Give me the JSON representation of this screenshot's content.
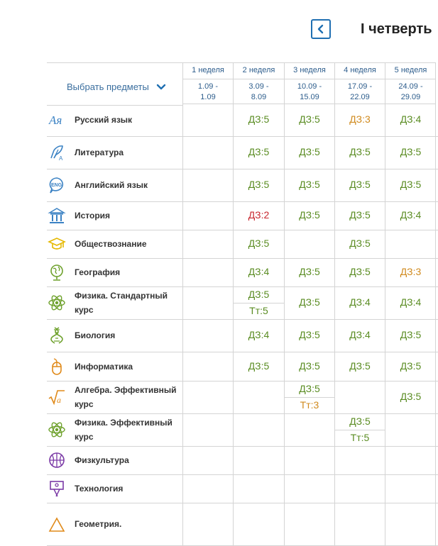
{
  "header": {
    "quarter_title": "I четверть",
    "subjects_select_label": "Выбрать предметы"
  },
  "weeks": [
    {
      "name": "1 неделя",
      "dates_start": "1.09 -",
      "dates_end": "1.09"
    },
    {
      "name": "2 неделя",
      "dates_start": "3.09 -",
      "dates_end": "8.09"
    },
    {
      "name": "3 неделя",
      "dates_start": "10.09 -",
      "dates_end": "15.09"
    },
    {
      "name": "4 неделя",
      "dates_start": "17.09 -",
      "dates_end": "22.09"
    },
    {
      "name": "5 неделя",
      "dates_start": "24.09 -",
      "dates_end": "29.09"
    }
  ],
  "subjects": [
    {
      "name_line1": "Русский язык",
      "name_line2": "",
      "icon": "russian-language-icon",
      "marks": [
        [],
        [
          {
            "text": "ДЗ:5",
            "grade": 5
          }
        ],
        [
          {
            "text": "ДЗ:5",
            "grade": 5
          }
        ],
        [
          {
            "text": "ДЗ:3",
            "grade": 3
          }
        ],
        [
          {
            "text": "ДЗ:4",
            "grade": 4
          }
        ]
      ]
    },
    {
      "name_line1": "Литература",
      "name_line2": "",
      "icon": "literature-icon",
      "marks": [
        [],
        [
          {
            "text": "ДЗ:5",
            "grade": 5
          }
        ],
        [
          {
            "text": "ДЗ:5",
            "grade": 5
          }
        ],
        [
          {
            "text": "ДЗ:5",
            "grade": 5
          }
        ],
        [
          {
            "text": "ДЗ:5",
            "grade": 5
          }
        ]
      ]
    },
    {
      "name_line1": "Английский язык",
      "name_line2": "",
      "icon": "english-language-icon",
      "marks": [
        [],
        [
          {
            "text": "ДЗ:5",
            "grade": 5
          }
        ],
        [
          {
            "text": "ДЗ:5",
            "grade": 5
          }
        ],
        [
          {
            "text": "ДЗ:5",
            "grade": 5
          }
        ],
        [
          {
            "text": "ДЗ:5",
            "grade": 5
          }
        ]
      ]
    },
    {
      "name_line1": "История",
      "name_line2": "",
      "icon": "history-icon",
      "marks": [
        [],
        [
          {
            "text": "ДЗ:2",
            "grade": 2
          }
        ],
        [
          {
            "text": "ДЗ:5",
            "grade": 5
          }
        ],
        [
          {
            "text": "ДЗ:5",
            "grade": 5
          }
        ],
        [
          {
            "text": "ДЗ:4",
            "grade": 4
          }
        ]
      ]
    },
    {
      "name_line1": "Обществознание",
      "name_line2": "",
      "icon": "social-studies-icon",
      "marks": [
        [],
        [
          {
            "text": "ДЗ:5",
            "grade": 5
          }
        ],
        [],
        [
          {
            "text": "ДЗ:5",
            "grade": 5
          }
        ],
        []
      ]
    },
    {
      "name_line1": "География",
      "name_line2": "",
      "icon": "geography-icon",
      "marks": [
        [],
        [
          {
            "text": "ДЗ:4",
            "grade": 4
          }
        ],
        [
          {
            "text": "ДЗ:5",
            "grade": 5
          }
        ],
        [
          {
            "text": "ДЗ:5",
            "grade": 5
          }
        ],
        [
          {
            "text": "ДЗ:3",
            "grade": 3
          }
        ]
      ]
    },
    {
      "name_line1": "Физика. Стандартный",
      "name_line2": "курс",
      "icon": "physics-icon",
      "marks": [
        [],
        [
          {
            "text": "ДЗ:5",
            "grade": 5
          },
          {
            "text": "Тт:5",
            "grade": 5
          }
        ],
        [
          {
            "text": "ДЗ:5",
            "grade": 5
          }
        ],
        [
          {
            "text": "ДЗ:4",
            "grade": 4
          }
        ],
        [
          {
            "text": "ДЗ:4",
            "grade": 4
          }
        ]
      ]
    },
    {
      "name_line1": "Биология",
      "name_line2": "",
      "icon": "biology-icon",
      "marks": [
        [],
        [
          {
            "text": "ДЗ:4",
            "grade": 4
          }
        ],
        [
          {
            "text": "ДЗ:5",
            "grade": 5
          }
        ],
        [
          {
            "text": "ДЗ:4",
            "grade": 4
          }
        ],
        [
          {
            "text": "ДЗ:5",
            "grade": 5
          }
        ]
      ]
    },
    {
      "name_line1": "Информатика",
      "name_line2": "",
      "icon": "informatics-icon",
      "marks": [
        [],
        [
          {
            "text": "ДЗ:5",
            "grade": 5
          }
        ],
        [
          {
            "text": "ДЗ:5",
            "grade": 5
          }
        ],
        [
          {
            "text": "ДЗ:5",
            "grade": 5
          }
        ],
        [
          {
            "text": "ДЗ:5",
            "grade": 5
          }
        ]
      ]
    },
    {
      "name_line1": "Алгебра. Эффективный",
      "name_line2": "курс",
      "icon": "algebra-icon",
      "marks": [
        [],
        [],
        [
          {
            "text": "ДЗ:5",
            "grade": 5
          },
          {
            "text": "Тт:3",
            "grade": 3
          }
        ],
        [],
        [
          {
            "text": "ДЗ:5",
            "grade": 5
          }
        ]
      ]
    },
    {
      "name_line1": "Физика. Эффективный",
      "name_line2": "курс",
      "icon": "physics-icon",
      "marks": [
        [],
        [],
        [],
        [
          {
            "text": "ДЗ:5",
            "grade": 5
          },
          {
            "text": "Тт:5",
            "grade": 5
          }
        ],
        []
      ]
    },
    {
      "name_line1": "Физкультура",
      "name_line2": "",
      "icon": "physical-education-icon",
      "marks": [
        [],
        [],
        [],
        [],
        []
      ]
    },
    {
      "name_line1": "Технология",
      "name_line2": "",
      "icon": "technology-icon",
      "marks": [
        [],
        [],
        [],
        [],
        []
      ]
    },
    {
      "name_line1": "Геометрия.",
      "name_line2": "",
      "icon": "geometry-icon",
      "marks": [
        [],
        [],
        [],
        [],
        []
      ]
    }
  ],
  "colors": {
    "accent": "#1f6fb2",
    "grade_good": "#5a8c22",
    "grade_three": "#d08a1e",
    "grade_two": "#c8262e",
    "icon_blue": "#3b82c4",
    "icon_green": "#6ea12c",
    "icon_orange": "#e08a1a",
    "icon_yellow": "#e5b800",
    "icon_purple": "#7b3aa6"
  }
}
